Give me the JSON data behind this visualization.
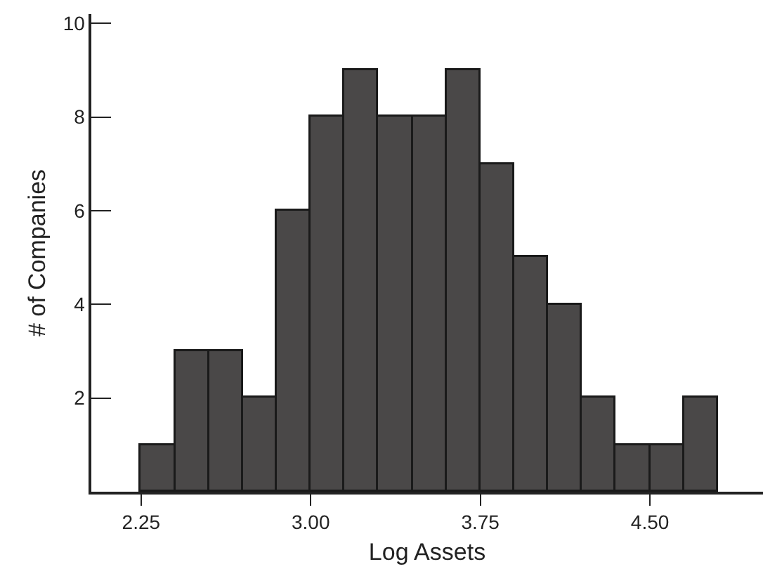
{
  "chart_data": {
    "type": "histogram",
    "xlabel": "Log Assets",
    "ylabel": "# of Companies",
    "bins": [
      2.25,
      2.4,
      2.55,
      2.7,
      2.85,
      3.0,
      3.15,
      3.3,
      3.45,
      3.6,
      3.75,
      3.9,
      4.05,
      4.2,
      4.35,
      4.5,
      4.65,
      4.8
    ],
    "values": [
      1,
      3,
      3,
      2,
      6,
      8,
      9,
      8,
      8,
      9,
      7,
      5,
      4,
      2,
      1,
      1,
      2
    ],
    "color": "#4a4848",
    "xlim": [
      2.03,
      5.0
    ],
    "xticks": [
      {
        "value": 2.25,
        "label": "2.25"
      },
      {
        "value": 3.0,
        "label": "3.00"
      },
      {
        "value": 3.75,
        "label": "3.75"
      },
      {
        "value": 4.5,
        "label": "4.50"
      }
    ],
    "ylim": [
      0,
      10.2
    ],
    "yticks": [
      2,
      4,
      6,
      8,
      10
    ]
  }
}
